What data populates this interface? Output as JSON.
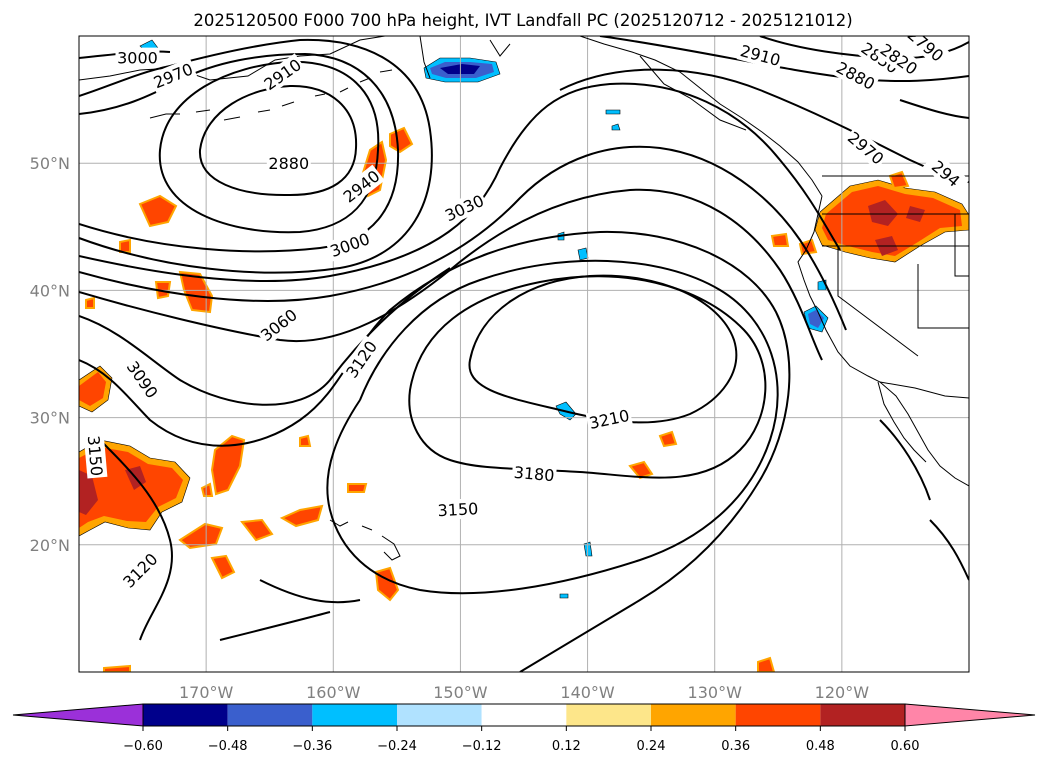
{
  "title": "2025120500 F000 700 hPa height, IVT Landfall PC (2025120712 - 2025121012)",
  "map": {
    "lon_range": [
      -180,
      -110
    ],
    "lat_range": [
      10,
      60
    ],
    "lon_ticks": [
      {
        "lon": -170,
        "label": "170°W"
      },
      {
        "lon": -160,
        "label": "160°W"
      },
      {
        "lon": -150,
        "label": "150°W"
      },
      {
        "lon": -140,
        "label": "140°W"
      },
      {
        "lon": -130,
        "label": "130°W"
      },
      {
        "lon": -120,
        "label": "120°W"
      }
    ],
    "lat_ticks": [
      {
        "lat": 20,
        "label": "20°N"
      },
      {
        "lat": 30,
        "label": "30°N"
      },
      {
        "lat": 40,
        "label": "40°N"
      },
      {
        "lat": 50,
        "label": "50°N"
      }
    ],
    "grid": true
  },
  "contour_labels": [
    {
      "text": "3000",
      "lon": -175.4,
      "lat": 58.3,
      "angle": 0
    },
    {
      "text": "2970",
      "lon": -172.6,
      "lat": 56.9,
      "angle": -22
    },
    {
      "text": "2910",
      "lon": -164.0,
      "lat": 57.0,
      "angle": -35
    },
    {
      "text": "2880",
      "lon": -163.5,
      "lat": 50.0,
      "angle": 0
    },
    {
      "text": "2940",
      "lon": -157.8,
      "lat": 48.2,
      "angle": -38
    },
    {
      "text": "3030",
      "lon": -149.7,
      "lat": 46.5,
      "angle": -25
    },
    {
      "text": "3000",
      "lon": -158.7,
      "lat": 43.6,
      "angle": -20
    },
    {
      "text": "3060",
      "lon": -164.3,
      "lat": 37.3,
      "angle": -38
    },
    {
      "text": "3120",
      "lon": -157.8,
      "lat": 34.6,
      "angle": -55
    },
    {
      "text": "3090",
      "lon": -175.0,
      "lat": 33.0,
      "angle": 55
    },
    {
      "text": "3150",
      "lon": -178.7,
      "lat": 27.0,
      "angle": 85
    },
    {
      "text": "3210",
      "lon": -138.3,
      "lat": 29.9,
      "angle": -12
    },
    {
      "text": "3180",
      "lon": -144.2,
      "lat": 25.6,
      "angle": 5
    },
    {
      "text": "3150",
      "lon": -150.2,
      "lat": 22.8,
      "angle": -3
    },
    {
      "text": "3120",
      "lon": -175.2,
      "lat": 18.0,
      "angle": -45
    },
    {
      "text": "2910",
      "lon": -126.4,
      "lat": 58.5,
      "angle": 15
    },
    {
      "text": "2880",
      "lon": -118.9,
      "lat": 56.9,
      "angle": 28
    },
    {
      "text": "2850",
      "lon": -117.0,
      "lat": 58.3,
      "angle": 35
    },
    {
      "text": "2820",
      "lon": -115.5,
      "lat": 58.2,
      "angle": 35
    },
    {
      "text": "2790",
      "lon": -113.4,
      "lat": 59.3,
      "angle": 40
    },
    {
      "text": "2970",
      "lon": -118.1,
      "lat": 51.2,
      "angle": 40
    },
    {
      "text": "294",
      "lon": -111.8,
      "lat": 49.2,
      "angle": 40
    }
  ],
  "colorbar": {
    "bounds": [
      -0.6,
      -0.48,
      -0.36,
      -0.24,
      -0.12,
      0.12,
      0.24,
      0.36,
      0.48,
      0.6
    ],
    "tick_labels": [
      "−0.60",
      "−0.48",
      "−0.36",
      "−0.24",
      "−0.12",
      "0.12",
      "0.24",
      "0.36",
      "0.48",
      "0.60"
    ],
    "colors": [
      "#9b30d9",
      "#00008b",
      "#3a5fcd",
      "#00bfff",
      "#b0e2ff",
      "#ffffff",
      "#fde68a",
      "#ffa500",
      "#ff4500",
      "#b22222",
      "#ff85a8"
    ],
    "extend": "both"
  }
}
